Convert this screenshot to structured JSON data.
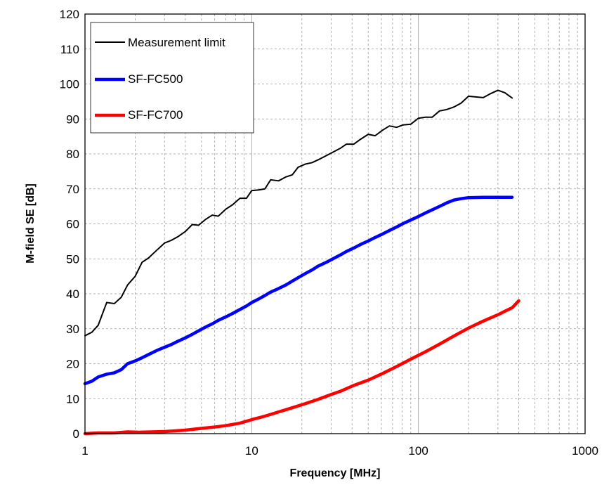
{
  "chart_data": {
    "type": "line",
    "xlabel": "Frequency [MHz]",
    "ylabel": "M-field SE [dB]",
    "x_scale": "log",
    "xlim": [
      1,
      1000
    ],
    "ylim": [
      0,
      120
    ],
    "x_ticks": [
      "1",
      "10",
      "100",
      "1000"
    ],
    "y_ticks": [
      "0",
      "10",
      "20",
      "30",
      "40",
      "50",
      "60",
      "70",
      "80",
      "90",
      "100",
      "110",
      "120"
    ],
    "grid": true,
    "legend_position": "top-left",
    "series": [
      {
        "name": "Measurement limit",
        "color": "#000000",
        "points": [
          [
            1,
            28
          ],
          [
            1.1,
            29
          ],
          [
            1.2,
            31
          ],
          [
            1.35,
            37.5
          ],
          [
            1.5,
            37.2
          ],
          [
            1.65,
            39
          ],
          [
            1.8,
            42.5
          ],
          [
            2,
            45
          ],
          [
            2.2,
            49
          ],
          [
            2.4,
            50.2
          ],
          [
            2.7,
            52.5
          ],
          [
            3,
            54.5
          ],
          [
            3.3,
            55.3
          ],
          [
            3.6,
            56.3
          ],
          [
            4,
            57.8
          ],
          [
            4.4,
            59.8
          ],
          [
            4.8,
            59.6
          ],
          [
            5.3,
            61.3
          ],
          [
            5.8,
            62.5
          ],
          [
            6.3,
            62.2
          ],
          [
            7,
            64.2
          ],
          [
            7.7,
            65.5
          ],
          [
            8.5,
            67.3
          ],
          [
            9.3,
            67.3
          ],
          [
            10,
            69.5
          ],
          [
            11,
            69.7
          ],
          [
            12,
            70
          ],
          [
            13,
            72.6
          ],
          [
            14.5,
            72.3
          ],
          [
            16,
            73.4
          ],
          [
            17.5,
            74
          ],
          [
            19,
            76.2
          ],
          [
            21,
            77.1
          ],
          [
            23,
            77.5
          ],
          [
            25,
            78.3
          ],
          [
            28,
            79.5
          ],
          [
            31,
            80.6
          ],
          [
            34,
            81.6
          ],
          [
            37,
            82.8
          ],
          [
            41,
            82.8
          ],
          [
            45,
            84.2
          ],
          [
            50,
            85.6
          ],
          [
            55,
            85.2
          ],
          [
            61,
            86.8
          ],
          [
            67,
            88
          ],
          [
            74,
            87.6
          ],
          [
            81,
            88.3
          ],
          [
            90,
            88.5
          ],
          [
            100,
            90.2
          ],
          [
            110,
            90.5
          ],
          [
            121,
            90.5
          ],
          [
            134,
            92.3
          ],
          [
            148,
            92.7
          ],
          [
            163,
            93.4
          ],
          [
            180,
            94.5
          ],
          [
            200,
            96.5
          ],
          [
            220,
            96.3
          ],
          [
            245,
            96.1
          ],
          [
            270,
            97.2
          ],
          [
            300,
            98.2
          ],
          [
            330,
            97.5
          ],
          [
            365,
            96
          ]
        ]
      },
      {
        "name": "SF-FC500",
        "color": "#0000ff",
        "points": [
          [
            1,
            14.3
          ],
          [
            1.1,
            15
          ],
          [
            1.2,
            16.2
          ],
          [
            1.35,
            17
          ],
          [
            1.5,
            17.4
          ],
          [
            1.65,
            18.3
          ],
          [
            1.8,
            20
          ],
          [
            2,
            20.8
          ],
          [
            2.2,
            21.7
          ],
          [
            2.4,
            22.6
          ],
          [
            2.7,
            23.8
          ],
          [
            3,
            24.7
          ],
          [
            3.3,
            25.5
          ],
          [
            3.6,
            26.4
          ],
          [
            4,
            27.4
          ],
          [
            4.4,
            28.4
          ],
          [
            4.8,
            29.4
          ],
          [
            5.3,
            30.5
          ],
          [
            5.8,
            31.4
          ],
          [
            6.3,
            32.4
          ],
          [
            7,
            33.4
          ],
          [
            7.7,
            34.4
          ],
          [
            8.5,
            35.5
          ],
          [
            9.3,
            36.5
          ],
          [
            10,
            37.5
          ],
          [
            11,
            38.5
          ],
          [
            12,
            39.5
          ],
          [
            13,
            40.5
          ],
          [
            14.5,
            41.5
          ],
          [
            16,
            42.5
          ],
          [
            17.5,
            43.6
          ],
          [
            19,
            44.6
          ],
          [
            21,
            45.8
          ],
          [
            23,
            46.8
          ],
          [
            25,
            47.9
          ],
          [
            28,
            49
          ],
          [
            31,
            50.1
          ],
          [
            34,
            51.1
          ],
          [
            37,
            52.1
          ],
          [
            41,
            53.1
          ],
          [
            45,
            54.1
          ],
          [
            50,
            55.1
          ],
          [
            55,
            56.1
          ],
          [
            61,
            57.1
          ],
          [
            67,
            58.1
          ],
          [
            74,
            59.1
          ],
          [
            81,
            60.1
          ],
          [
            90,
            61.1
          ],
          [
            100,
            62.1
          ],
          [
            110,
            63.1
          ],
          [
            121,
            64
          ],
          [
            134,
            65
          ],
          [
            148,
            66
          ],
          [
            163,
            66.8
          ],
          [
            180,
            67.2
          ],
          [
            200,
            67.5
          ],
          [
            245,
            67.6
          ],
          [
            300,
            67.6
          ],
          [
            365,
            67.6
          ]
        ]
      },
      {
        "name": "SF-FC700",
        "color": "#ff0000",
        "points": [
          [
            1,
            0
          ],
          [
            1.2,
            0.2
          ],
          [
            1.5,
            0.2
          ],
          [
            1.8,
            0.5
          ],
          [
            2.1,
            0.4
          ],
          [
            2.5,
            0.5
          ],
          [
            3,
            0.6
          ],
          [
            3.5,
            0.8
          ],
          [
            4,
            1
          ],
          [
            5,
            1.5
          ],
          [
            6,
            1.9
          ],
          [
            7,
            2.3
          ],
          [
            8.5,
            3
          ],
          [
            10,
            4
          ],
          [
            12,
            5
          ],
          [
            14.5,
            6.2
          ],
          [
            17.5,
            7.4
          ],
          [
            21,
            8.6
          ],
          [
            25,
            9.8
          ],
          [
            30,
            11.2
          ],
          [
            34,
            12.1
          ],
          [
            41,
            13.8
          ],
          [
            50,
            15.3
          ],
          [
            61,
            17.2
          ],
          [
            74,
            19.2
          ],
          [
            90,
            21.3
          ],
          [
            110,
            23.4
          ],
          [
            134,
            25.6
          ],
          [
            163,
            27.9
          ],
          [
            200,
            30.2
          ],
          [
            245,
            32.2
          ],
          [
            300,
            34
          ],
          [
            330,
            35
          ],
          [
            365,
            36
          ],
          [
            400,
            38
          ]
        ]
      }
    ]
  }
}
